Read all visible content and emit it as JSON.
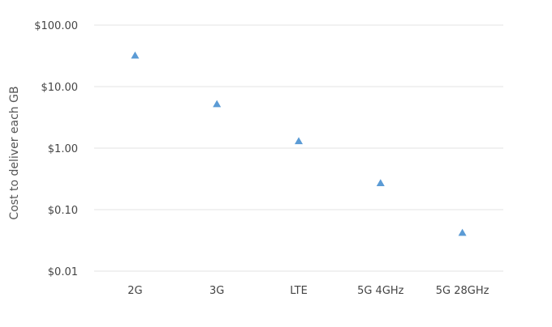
{
  "chart_data": {
    "type": "scatter",
    "title": "",
    "xlabel": "",
    "ylabel": "Cost to deliver each GB",
    "y_scale": "log",
    "ylim": [
      0.01,
      100
    ],
    "y_ticks": [
      100,
      10,
      1,
      0.1,
      0.01
    ],
    "y_tick_labels": [
      "$100.00",
      "$10.00",
      "$1.00",
      "$0.10",
      "$0.01"
    ],
    "categories": [
      "2G",
      "3G",
      "LTE",
      "5G 4GHz",
      "5G 28GHz"
    ],
    "series": [
      {
        "values": [
          32,
          5.2,
          1.3,
          0.27,
          0.042
        ]
      }
    ],
    "marker": "triangle",
    "grid": true,
    "legend": "none",
    "colors": {
      "marker": "#5b9bd5",
      "grid": "#e3e3e3",
      "text": "#444444"
    }
  }
}
